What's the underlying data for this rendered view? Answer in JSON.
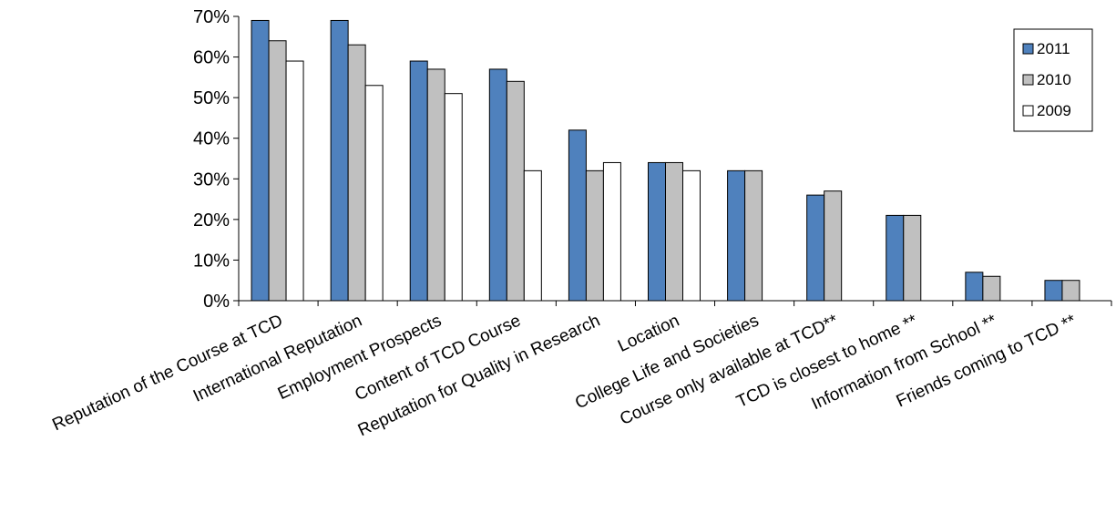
{
  "chart_data": {
    "type": "bar",
    "title": "",
    "xlabel": "",
    "ylabel": "",
    "ylim": [
      0,
      70
    ],
    "y_ticks": [
      0,
      10,
      20,
      30,
      40,
      50,
      60,
      70
    ],
    "y_tick_labels": [
      "0%",
      "10%",
      "20%",
      "30%",
      "40%",
      "50%",
      "60%",
      "70%"
    ],
    "grid": false,
    "legend_position": "top-right",
    "categories": [
      "Reputation of the Course at TCD",
      "International Reputation",
      "Employment Prospects",
      "Content of TCD Course",
      "Reputation for Quality in Research",
      "Location",
      "College Life and Societies",
      "Course only available at TCD**",
      "TCD is closest to home **",
      "Information from School **",
      "Friends coming to TCD **"
    ],
    "series": [
      {
        "name": "2011",
        "color": "#4F81BD",
        "values": [
          69,
          69,
          59,
          57,
          42,
          34,
          32,
          26,
          21,
          7,
          5
        ]
      },
      {
        "name": "2010",
        "color": "#C0C0C0",
        "values": [
          64,
          63,
          57,
          54,
          32,
          34,
          32,
          27,
          21,
          6,
          5
        ]
      },
      {
        "name": "2009",
        "color": "#FFFFFF",
        "values": [
          59,
          53,
          51,
          32,
          34,
          32,
          null,
          null,
          null,
          null,
          null
        ]
      }
    ]
  }
}
